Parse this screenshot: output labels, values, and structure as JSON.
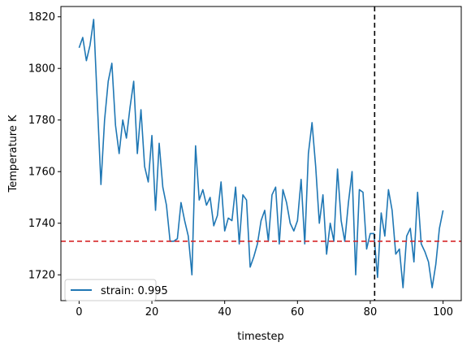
{
  "chart_data": {
    "type": "line",
    "xlabel": "timestep",
    "ylabel": "Temperature K",
    "xlim": [
      -5,
      105
    ],
    "ylim": [
      1710,
      1824
    ],
    "xticks": [
      0,
      20,
      40,
      60,
      80,
      100
    ],
    "yticks": [
      1720,
      1740,
      1760,
      1780,
      1800,
      1820
    ],
    "grid": false,
    "legend_placement": "lower-left",
    "series": [
      {
        "name": "strain: 0.995",
        "color": "#1f77b4",
        "x": [
          0,
          1,
          2,
          3,
          4,
          5,
          6,
          7,
          8,
          9,
          10,
          11,
          12,
          13,
          14,
          15,
          16,
          17,
          18,
          19,
          20,
          21,
          22,
          23,
          24,
          25,
          26,
          27,
          28,
          29,
          30,
          31,
          32,
          33,
          34,
          35,
          36,
          37,
          38,
          39,
          40,
          41,
          42,
          43,
          44,
          45,
          46,
          47,
          48,
          49,
          50,
          51,
          52,
          53,
          54,
          55,
          56,
          57,
          58,
          59,
          60,
          61,
          62,
          63,
          64,
          65,
          66,
          67,
          68,
          69,
          70,
          71,
          72,
          73,
          74,
          75,
          76,
          77,
          78,
          79,
          80,
          81,
          82,
          83,
          84,
          85,
          86,
          87,
          88,
          89,
          90,
          91,
          92,
          93,
          94,
          95,
          96,
          97,
          98,
          99,
          100
        ],
        "y": [
          1808,
          1812,
          1803,
          1809,
          1819,
          1787,
          1755,
          1780,
          1795,
          1802,
          1778,
          1767,
          1780,
          1773,
          1785,
          1795,
          1767,
          1784,
          1762,
          1756,
          1774,
          1745,
          1771,
          1754,
          1747,
          1733,
          1733,
          1734,
          1748,
          1741,
          1735,
          1720,
          1770,
          1749,
          1753,
          1747,
          1750,
          1739,
          1743,
          1756,
          1737,
          1742,
          1741,
          1754,
          1732,
          1751,
          1749,
          1723,
          1727,
          1732,
          1741,
          1745,
          1733,
          1751,
          1754,
          1732,
          1753,
          1748,
          1740,
          1737,
          1741,
          1757,
          1732,
          1767,
          1779,
          1762,
          1740,
          1751,
          1728,
          1740,
          1733,
          1761,
          1741,
          1733,
          1748,
          1760,
          1720,
          1753,
          1752,
          1730,
          1736,
          1736,
          1719,
          1744,
          1735,
          1753,
          1745,
          1728,
          1730,
          1715,
          1735,
          1738,
          1725,
          1752,
          1732,
          1729,
          1725,
          1715,
          1724,
          1738,
          1745
        ]
      }
    ],
    "reference_lines": [
      {
        "orientation": "horizontal",
        "value": 1733,
        "color": "#d62728",
        "style": "dashed"
      },
      {
        "orientation": "vertical",
        "value": 81.2,
        "color": "#000000",
        "style": "dashed"
      }
    ]
  }
}
